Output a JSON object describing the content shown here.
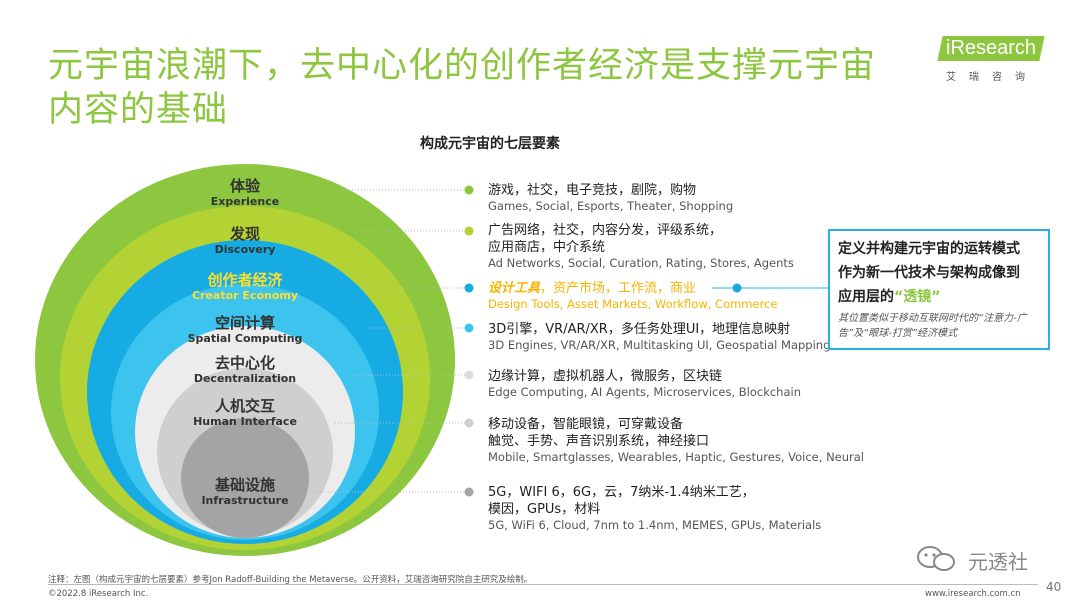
{
  "title": "元宇宙浪潮下，去中心化的创作者经济是支撑元宇宙内容的基础",
  "logo": {
    "brand": "iResearch",
    "cn": "艾瑞咨询"
  },
  "diagram_title": "构成元宇宙的七层要素",
  "layers": [
    {
      "zh": "体验",
      "en": "Experience",
      "color": "#8dc63f",
      "desc_zh": "游戏，社交，电子竞技，剧院，购物",
      "desc_en": "Games, Social, Esports, Theater, Shopping"
    },
    {
      "zh": "发现",
      "en": "Discovery",
      "color": "#a9cf38",
      "desc_zh": "广告网络，社交，内容分发，评级系统，",
      "desc_zh2": "应用商店，中介系统",
      "desc_en": "Ad Networks, Social, Curation, Rating, Stores, Agents"
    },
    {
      "zh": "创作者经济",
      "en": "Creator Economy",
      "color": "#16b1e6",
      "desc_zh_hl": "设计工具",
      "desc_zh": "，资产市场，工作流，商业",
      "desc_en": "Design Tools, Asset Markets, Workflow, Commerce"
    },
    {
      "zh": "空间计算",
      "en": "Spatial Computing",
      "color": "#1ec0ee",
      "desc_zh": "3D引擎，VR/AR/XR，多任务处理UI，地理信息映射",
      "desc_en": "3D Engines, VR/AR/XR, Multitasking UI, Geospatial Mapping"
    },
    {
      "zh": "去中心化",
      "en": "Decentralization",
      "color": "#e8e8e8",
      "desc_zh": "边缘计算，虚拟机器人，微服务，区块链",
      "desc_en": "Edge Computing, AI Agents, Microservices, Blockchain"
    },
    {
      "zh": "人机交互",
      "en": "Human Interface",
      "color": "#c9c9c9",
      "desc_zh": "移动设备，智能眼镜，可穿戴设备",
      "desc_zh2": "触觉、手势、声音识别系统，神经接口",
      "desc_en": "Mobile, Smartglasses, Wearables, Haptic, Gestures, Voice, Neural"
    },
    {
      "zh": "基础设施",
      "en": "Infrastructure",
      "color": "#a8a8a8",
      "desc_zh": "5G，WIFI 6，6G，云，7纳米-1.4纳米工艺，",
      "desc_zh2": "模因，GPUs，材料",
      "desc_en": "5G, WiFi 6, Cloud, 7nm to 1.4nm, MEMES, GPUs, Materials"
    }
  ],
  "callout": {
    "line1": "定义并构建元宇宙的运转模式",
    "line2": "作为新一代技术与架构成像到",
    "line3_pre": "应用层的",
    "line3_hl": "“透镜”",
    "note": "其位置类似于移动互联网时代的“注意力-广告”及“眼球-打赏”经济模式"
  },
  "footer": {
    "note": "注释：左图（构成元宇宙的七层要素）参考Jon Radoff-Building the Metaverse。公开资料，艾瑞咨询研究院自主研究及绘制。",
    "copyright": "©2022.8 iResearch Inc.",
    "site": "www.iresearch.com.cn",
    "page": "40",
    "watermark": "元透社"
  },
  "colors": {
    "accent_green": "#8dc63f",
    "accent_blue": "#2ab0e4",
    "highlight_yellow": "#f5b400"
  }
}
